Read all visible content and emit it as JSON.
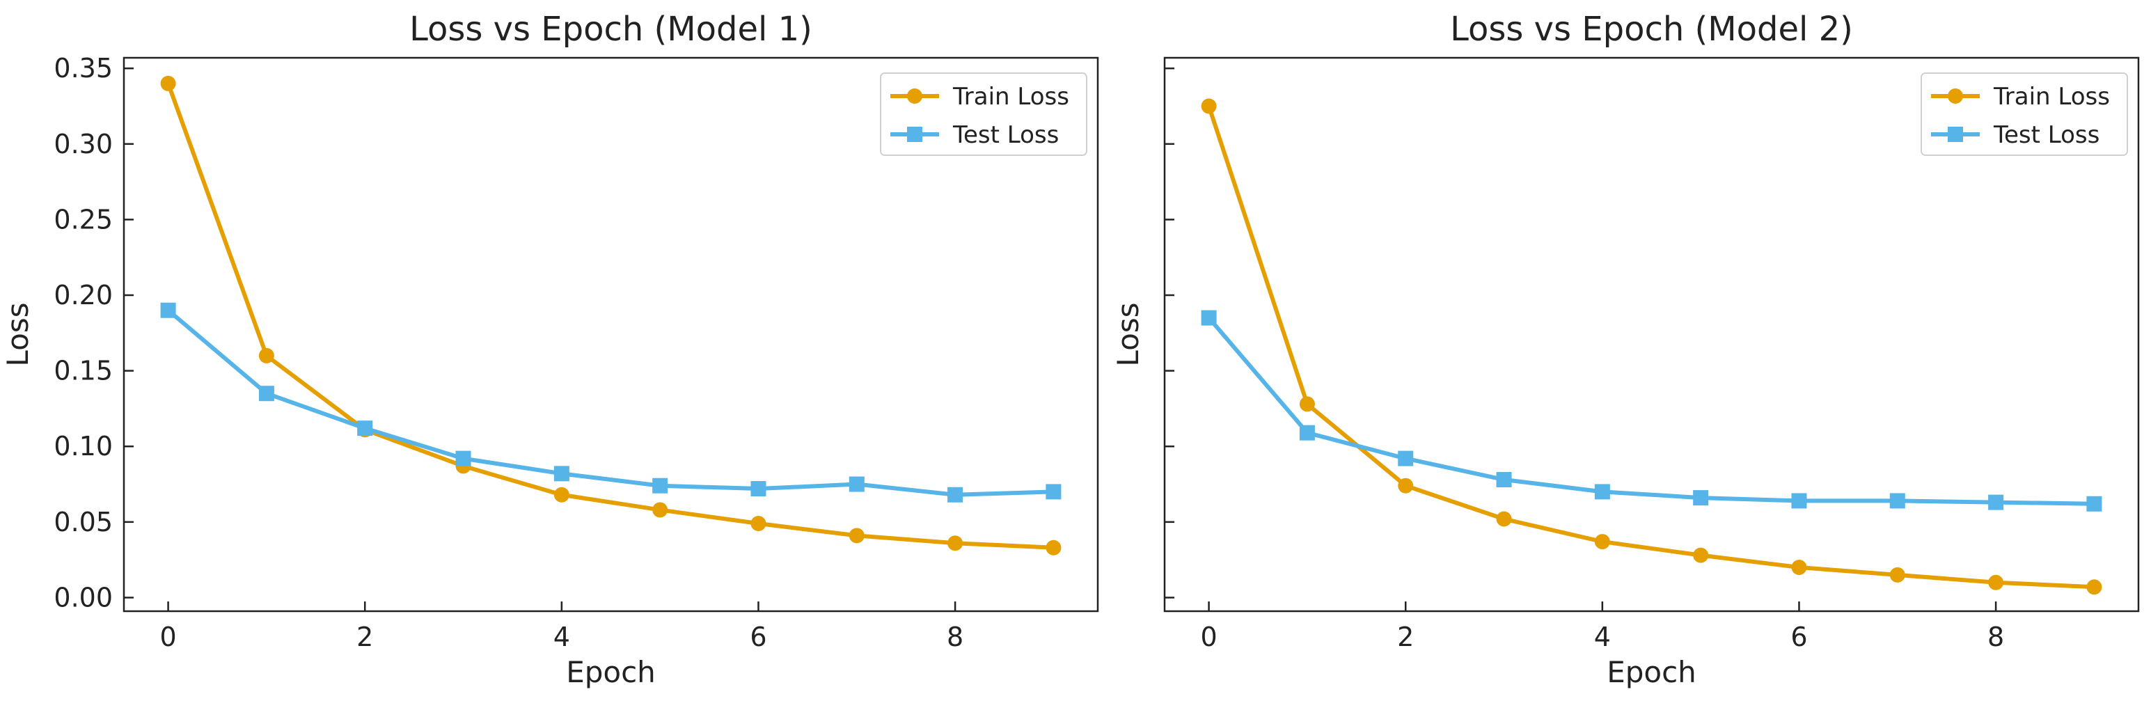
{
  "chart_data": [
    {
      "type": "line",
      "title": "Loss vs Epoch (Model 1)",
      "xlabel": "Epoch",
      "ylabel": "Loss",
      "x": [
        0,
        1,
        2,
        3,
        4,
        5,
        6,
        7,
        8,
        9
      ],
      "xlim": [
        -0.45,
        9.45
      ],
      "ylim": [
        -0.009,
        0.357
      ],
      "xticks": [
        "0",
        "2",
        "4",
        "6",
        "8"
      ],
      "yticks": [
        "0.00",
        "0.05",
        "0.10",
        "0.15",
        "0.20",
        "0.25",
        "0.30",
        "0.35"
      ],
      "legend_position": "upper right",
      "series": [
        {
          "name": "Train Loss",
          "color": "#E69F00",
          "marker": "circle",
          "values": [
            0.34,
            0.16,
            0.111,
            0.087,
            0.068,
            0.058,
            0.049,
            0.041,
            0.036,
            0.033
          ]
        },
        {
          "name": "Test Loss",
          "color": "#56B4E9",
          "marker": "square",
          "values": [
            0.19,
            0.135,
            0.112,
            0.092,
            0.082,
            0.074,
            0.072,
            0.075,
            0.068,
            0.07
          ]
        }
      ]
    },
    {
      "type": "line",
      "title": "Loss vs Epoch (Model 2)",
      "xlabel": "Epoch",
      "ylabel": "Loss",
      "x": [
        0,
        1,
        2,
        3,
        4,
        5,
        6,
        7,
        8,
        9
      ],
      "xlim": [
        -0.45,
        9.45
      ],
      "ylim": [
        -0.009,
        0.357
      ],
      "xticks": [
        "0",
        "2",
        "4",
        "6",
        "8"
      ],
      "yticks": [],
      "legend_position": "upper right",
      "series": [
        {
          "name": "Train Loss",
          "color": "#E69F00",
          "marker": "circle",
          "values": [
            0.325,
            0.128,
            0.074,
            0.052,
            0.037,
            0.028,
            0.02,
            0.015,
            0.01,
            0.007
          ]
        },
        {
          "name": "Test Loss",
          "color": "#56B4E9",
          "marker": "square",
          "values": [
            0.185,
            0.109,
            0.092,
            0.078,
            0.07,
            0.066,
            0.064,
            0.064,
            0.063,
            0.062
          ]
        }
      ]
    }
  ]
}
